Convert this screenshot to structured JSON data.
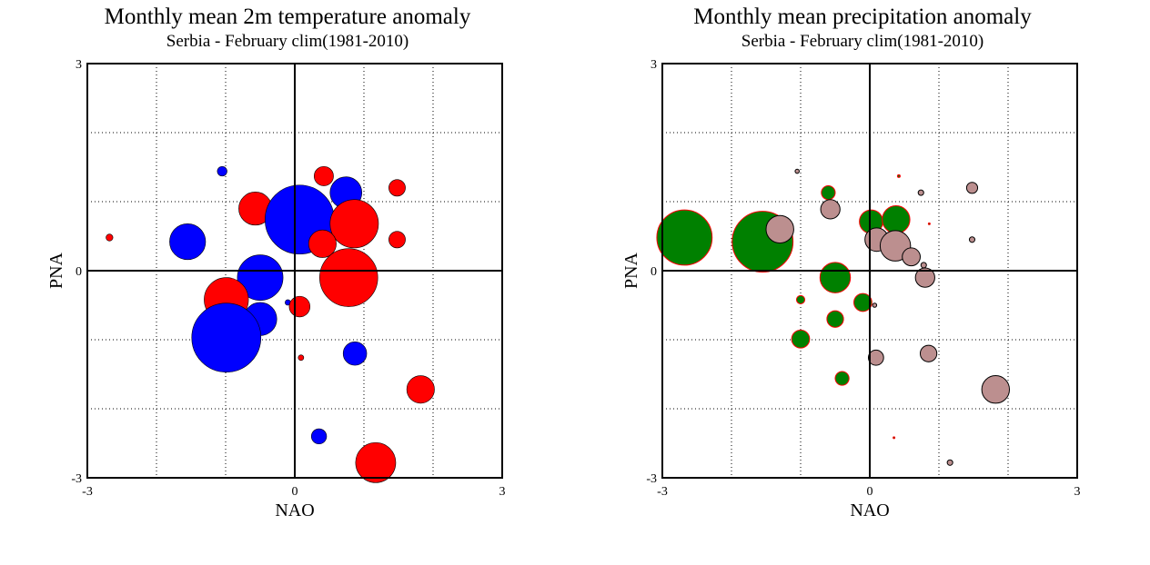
{
  "chart_data": [
    {
      "type": "scatter",
      "title": "Monthly mean 2m temperature anomaly",
      "subtitle": "Serbia - February  clim(1981-2010)",
      "xlabel": "NAO",
      "ylabel": "PNA",
      "xlim": [
        -3,
        3
      ],
      "ylim": [
        -3,
        3
      ],
      "xticks": [
        "-3",
        "0",
        "3"
      ],
      "yticks": [
        "-3",
        "0",
        "3"
      ],
      "grid": "dotted",
      "colors": {
        "positive": "#ff0000",
        "negative": "#0000ff"
      },
      "points": [
        {
          "x": -2.68,
          "y": 0.48,
          "r": 0.05,
          "sign": "positive"
        },
        {
          "x": -1.05,
          "y": 1.44,
          "r": 0.07,
          "sign": "negative"
        },
        {
          "x": -1.55,
          "y": 0.42,
          "r": 0.26,
          "sign": "negative"
        },
        {
          "x": -0.6,
          "y": 1.1,
          "r": 0.02,
          "sign": "positive"
        },
        {
          "x": -0.57,
          "y": 0.9,
          "r": 0.24,
          "sign": "positive"
        },
        {
          "x": 0.07,
          "y": 0.74,
          "r": 0.5,
          "sign": "negative"
        },
        {
          "x": 0.42,
          "y": 1.37,
          "r": 0.14,
          "sign": "positive"
        },
        {
          "x": 0.74,
          "y": 1.13,
          "r": 0.23,
          "sign": "negative"
        },
        {
          "x": 1.48,
          "y": 1.2,
          "r": 0.12,
          "sign": "positive"
        },
        {
          "x": 0.86,
          "y": 0.68,
          "r": 0.35,
          "sign": "positive"
        },
        {
          "x": 0.4,
          "y": 0.39,
          "r": 0.2,
          "sign": "positive"
        },
        {
          "x": 1.48,
          "y": 0.45,
          "r": 0.12,
          "sign": "positive"
        },
        {
          "x": -0.5,
          "y": -0.1,
          "r": 0.33,
          "sign": "negative"
        },
        {
          "x": 0.78,
          "y": -0.1,
          "r": 0.42,
          "sign": "positive"
        },
        {
          "x": -0.1,
          "y": -0.46,
          "r": 0.04,
          "sign": "negative"
        },
        {
          "x": 0.07,
          "y": -0.52,
          "r": 0.15,
          "sign": "positive"
        },
        {
          "x": -0.5,
          "y": -0.7,
          "r": 0.24,
          "sign": "negative"
        },
        {
          "x": -0.99,
          "y": -0.42,
          "r": 0.32,
          "sign": "positive"
        },
        {
          "x": -0.99,
          "y": -0.97,
          "r": 0.5,
          "sign": "negative"
        },
        {
          "x": 0.09,
          "y": -1.26,
          "r": 0.04,
          "sign": "positive"
        },
        {
          "x": 0.87,
          "y": -1.2,
          "r": 0.17,
          "sign": "negative"
        },
        {
          "x": 1.82,
          "y": -1.72,
          "r": 0.2,
          "sign": "positive"
        },
        {
          "x": 0.35,
          "y": -2.4,
          "r": 0.11,
          "sign": "negative"
        },
        {
          "x": 1.17,
          "y": -2.78,
          "r": 0.29,
          "sign": "positive"
        }
      ]
    },
    {
      "type": "scatter",
      "title": "Monthly mean precipitation anomaly",
      "subtitle": "Serbia - February  clim(1981-2010)",
      "xlabel": "NAO",
      "ylabel": "PNA",
      "xlim": [
        -3,
        3
      ],
      "ylim": [
        -3,
        3
      ],
      "xticks": [
        "-3",
        "0",
        "3"
      ],
      "yticks": [
        "-3",
        "0",
        "3"
      ],
      "grid": "dotted",
      "colors": {
        "positive": "#008000",
        "negative": "#bc8f8f",
        "positive_outline": "#ff0000",
        "negative_outline": "#000000"
      },
      "points": [
        {
          "x": -2.68,
          "y": 0.48,
          "r": 0.4,
          "sign": "positive"
        },
        {
          "x": -1.55,
          "y": 0.42,
          "r": 0.44,
          "sign": "positive"
        },
        {
          "x": -1.3,
          "y": 0.6,
          "r": 0.2,
          "sign": "negative"
        },
        {
          "x": -1.05,
          "y": 1.44,
          "r": 0.03,
          "sign": "negative"
        },
        {
          "x": -0.6,
          "y": 1.13,
          "r": 0.1,
          "sign": "positive"
        },
        {
          "x": -0.57,
          "y": 0.89,
          "r": 0.14,
          "sign": "negative"
        },
        {
          "x": 0.02,
          "y": 0.71,
          "r": 0.17,
          "sign": "positive"
        },
        {
          "x": 0.38,
          "y": 0.74,
          "r": 0.2,
          "sign": "positive"
        },
        {
          "x": 0.1,
          "y": 0.45,
          "r": 0.17,
          "sign": "negative"
        },
        {
          "x": 0.37,
          "y": 0.36,
          "r": 0.22,
          "sign": "negative"
        },
        {
          "x": 0.6,
          "y": 0.2,
          "r": 0.13,
          "sign": "negative"
        },
        {
          "x": 0.42,
          "y": 1.37,
          "r": 0.02,
          "sign": "positive"
        },
        {
          "x": 0.74,
          "y": 1.13,
          "r": 0.04,
          "sign": "negative"
        },
        {
          "x": 1.48,
          "y": 1.2,
          "r": 0.08,
          "sign": "negative"
        },
        {
          "x": 0.86,
          "y": 0.68,
          "r": 0.01,
          "sign": "positive"
        },
        {
          "x": 1.48,
          "y": 0.45,
          "r": 0.04,
          "sign": "negative"
        },
        {
          "x": 0.78,
          "y": 0.08,
          "r": 0.04,
          "sign": "negative"
        },
        {
          "x": 0.8,
          "y": -0.1,
          "r": 0.14,
          "sign": "negative"
        },
        {
          "x": -0.5,
          "y": -0.1,
          "r": 0.22,
          "sign": "positive"
        },
        {
          "x": -0.1,
          "y": -0.46,
          "r": 0.13,
          "sign": "positive"
        },
        {
          "x": 0.07,
          "y": -0.5,
          "r": 0.03,
          "sign": "negative"
        },
        {
          "x": -1.0,
          "y": -0.42,
          "r": 0.06,
          "sign": "positive"
        },
        {
          "x": -0.5,
          "y": -0.7,
          "r": 0.12,
          "sign": "positive"
        },
        {
          "x": -1.0,
          "y": -0.99,
          "r": 0.13,
          "sign": "positive"
        },
        {
          "x": 0.09,
          "y": -1.26,
          "r": 0.11,
          "sign": "negative"
        },
        {
          "x": 0.85,
          "y": -1.2,
          "r": 0.12,
          "sign": "negative"
        },
        {
          "x": -0.4,
          "y": -1.56,
          "r": 0.1,
          "sign": "positive"
        },
        {
          "x": 1.82,
          "y": -1.72,
          "r": 0.2,
          "sign": "negative"
        },
        {
          "x": 0.35,
          "y": -2.42,
          "r": 0.01,
          "sign": "positive"
        },
        {
          "x": 1.16,
          "y": -2.78,
          "r": 0.04,
          "sign": "negative"
        }
      ]
    }
  ]
}
